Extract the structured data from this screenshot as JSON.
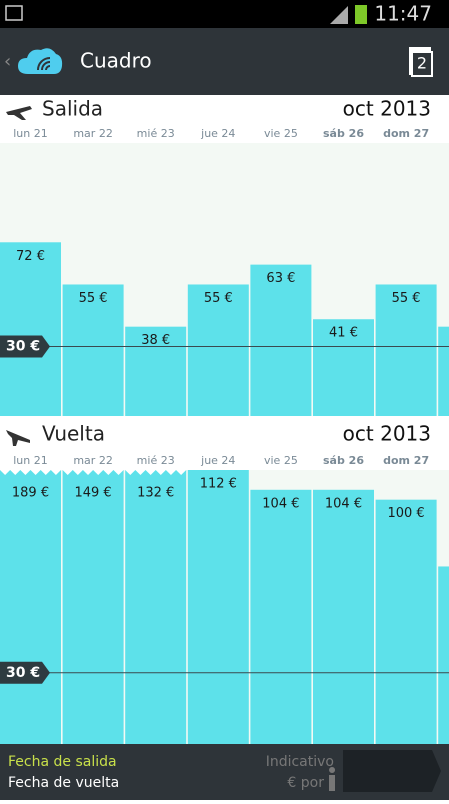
{
  "status_bar": {
    "time": "11:47"
  },
  "header": {
    "title": "Cuadro",
    "badge": "2"
  },
  "sections": [
    {
      "title": "Salida",
      "month": "oct 2013",
      "categories": [
        "lun 21",
        "mar 22",
        "mié 23",
        "jue 24",
        "vie 25",
        "sáb 26",
        "dom 27",
        null
      ],
      "values": [
        72,
        55,
        38,
        55,
        63,
        41,
        55,
        38
      ],
      "value_labels": [
        "72 €",
        "55 €",
        "38 €",
        "55 €",
        "63 €",
        "41 €",
        "55 €",
        null
      ],
      "ylim": [
        0,
        112
      ],
      "reference": {
        "value": 30,
        "label": "30 €"
      }
    },
    {
      "title": "Vuelta",
      "month": "oct 2013",
      "categories": [
        "lun 21",
        "mar 22",
        "mié 23",
        "jue 24",
        "vie 25",
        "sáb 26",
        "dom 27",
        null
      ],
      "values": [
        189,
        149,
        132,
        112,
        104,
        104,
        100,
        73
      ],
      "value_labels": [
        "189 €",
        "149 €",
        "132 €",
        "112 €",
        "104 €",
        "104 €",
        "100 €",
        null
      ],
      "ylim": [
        0,
        112
      ],
      "reference": {
        "value": 30,
        "label": "30 €"
      }
    }
  ],
  "footer": {
    "departure_label": "Fecha de salida",
    "return_label": "Fecha de vuelta",
    "price_note": "Indicativo",
    "per_person": "€ por"
  }
}
